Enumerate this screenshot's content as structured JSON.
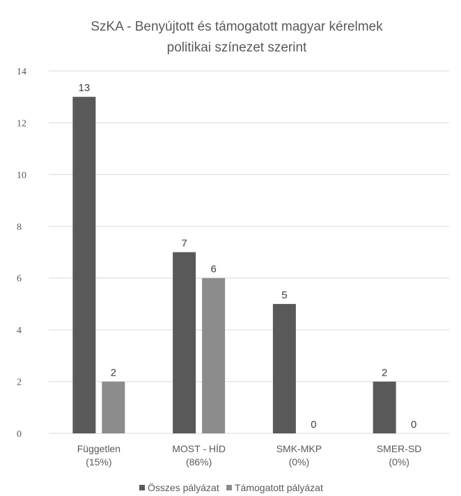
{
  "chart_data": {
    "type": "bar",
    "title_lines": [
      "SzKA - Benyújtott és támogatott magyar kérelmek",
      "politikai színezet szerint"
    ],
    "categories": [
      [
        "Független",
        "(15%)"
      ],
      [
        "MOST - HÍD",
        "(86%)"
      ],
      [
        "SMK-MKP",
        "(0%)"
      ],
      [
        "SMER-SD",
        "(0%)"
      ]
    ],
    "series": [
      {
        "name": "Összes pályázat",
        "values": [
          13,
          7,
          5,
          2
        ],
        "color": "#595959"
      },
      {
        "name": "Támogatott pályázat",
        "values": [
          2,
          6,
          0,
          0
        ],
        "color": "#8c8c8c"
      }
    ],
    "ylim": [
      0,
      14
    ],
    "yticks": [
      "0",
      "2",
      "4",
      "6",
      "8",
      "10",
      "12",
      "14"
    ],
    "grid": true,
    "legend_position": "bottom",
    "data_labels": true
  }
}
